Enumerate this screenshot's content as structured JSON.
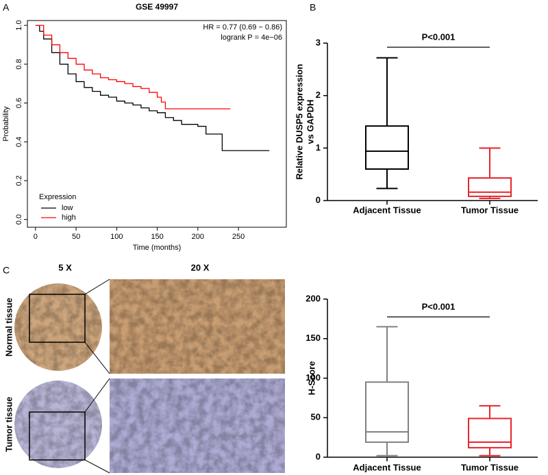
{
  "figure": {
    "panel_labels": [
      "A",
      "B",
      "C"
    ],
    "micrograph": {
      "columns": [
        "5 X",
        "20 X"
      ],
      "rows": [
        "Normal tissue",
        "Tumor tissue"
      ]
    }
  },
  "chart_data": [
    {
      "type": "km",
      "title": "GSE 49997",
      "annotations": [
        "HR = 0.77 (0.69 − 0.86)",
        "logrank P = 4e−06"
      ],
      "xlabel": "Time (months)",
      "ylabel": "Probability",
      "legend_title": "Expression",
      "xlim": [
        -10,
        309
      ],
      "ylim": [
        -0.04,
        1.025
      ],
      "xticks": [
        0,
        50,
        100,
        150,
        200,
        250
      ],
      "yticks": [
        {
          "value": 0,
          "label": "0.0"
        },
        {
          "value": 0.2,
          "label": "0.2"
        },
        {
          "value": 0.4,
          "label": "0.4"
        },
        {
          "value": 0.6,
          "label": "0.6"
        },
        {
          "value": 0.8,
          "label": "0.8"
        },
        {
          "value": 1,
          "label": "1.0"
        }
      ],
      "series": [
        {
          "name": "low",
          "color": "#000000",
          "x": [
            0,
            5,
            10,
            20,
            30,
            40,
            50,
            60,
            70,
            80,
            90,
            100,
            110,
            120,
            130,
            140,
            150,
            160,
            170,
            180,
            200,
            210,
            220,
            230,
            288
          ],
          "values": [
            1,
            0.97,
            0.93,
            0.86,
            0.8,
            0.75,
            0.71,
            0.68,
            0.66,
            0.64,
            0.63,
            0.61,
            0.6,
            0.59,
            0.575,
            0.56,
            0.55,
            0.525,
            0.51,
            0.49,
            0.48,
            0.44,
            0.44,
            0.355,
            0.355
          ]
        },
        {
          "name": "high",
          "color": "#ff0000",
          "x": [
            0,
            10,
            20,
            30,
            40,
            50,
            60,
            70,
            80,
            90,
            100,
            110,
            120,
            130,
            140,
            150,
            155,
            160,
            240
          ],
          "values": [
            1,
            0.95,
            0.9,
            0.86,
            0.83,
            0.8,
            0.77,
            0.75,
            0.73,
            0.72,
            0.71,
            0.7,
            0.685,
            0.675,
            0.655,
            0.63,
            0.605,
            0.57,
            0.57
          ]
        }
      ]
    },
    {
      "type": "box",
      "ylabel": [
        "Relative DUSP5 expression",
        "vs GAPDH"
      ],
      "annotation": "P<0.001",
      "categories": [
        "Adjacent Tissue",
        "Tumor Tissue"
      ],
      "ylim": [
        0,
        3
      ],
      "yticks": [
        0,
        1,
        2,
        3
      ],
      "boxes": [
        {
          "color": "#000000",
          "min": 0.23,
          "q1": 0.6,
          "median": 0.94,
          "q3": 1.42,
          "max": 2.72
        },
        {
          "color": "#e8232a",
          "min": 0.04,
          "q1": 0.08,
          "median": 0.16,
          "q3": 0.43,
          "max": 1.0
        }
      ]
    },
    {
      "type": "box",
      "ylabel": [
        "H-Score"
      ],
      "annotation": "P<0.001",
      "categories": [
        "Adjacent Tissue",
        "Tumor Tissue"
      ],
      "ylim": [
        0,
        200
      ],
      "yticks": [
        0,
        50,
        100,
        150,
        200
      ],
      "boxes": [
        {
          "color": "#808080",
          "min": 2,
          "q1": 19,
          "median": 32,
          "q3": 95,
          "max": 165
        },
        {
          "color": "#e8232a",
          "min": 2,
          "q1": 12,
          "median": 19,
          "q3": 49,
          "max": 65
        }
      ]
    }
  ]
}
